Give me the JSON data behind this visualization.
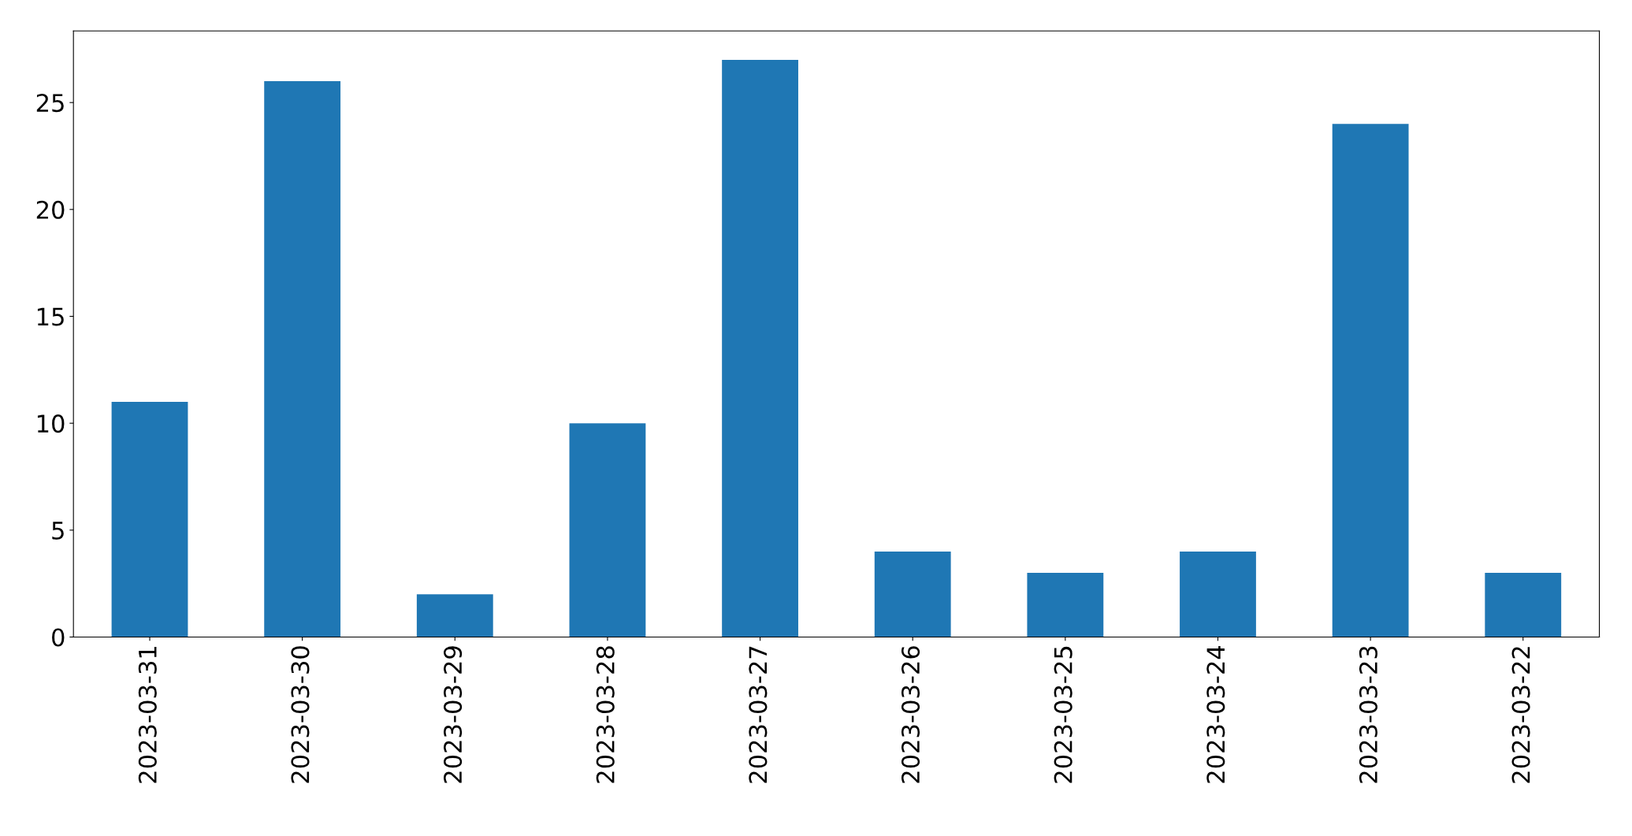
{
  "chart_data": {
    "type": "bar",
    "categories": [
      "2023-03-31",
      "2023-03-30",
      "2023-03-29",
      "2023-03-28",
      "2023-03-27",
      "2023-03-26",
      "2023-03-25",
      "2023-03-24",
      "2023-03-23",
      "2023-03-22"
    ],
    "values": [
      11,
      26,
      2,
      10,
      27,
      4,
      3,
      4,
      24,
      3
    ],
    "color": "#1f77b4",
    "ylim": [
      0,
      28.35
    ],
    "yticks": [
      0,
      5,
      10,
      15,
      20,
      25
    ],
    "grid": false,
    "legend": false
  }
}
